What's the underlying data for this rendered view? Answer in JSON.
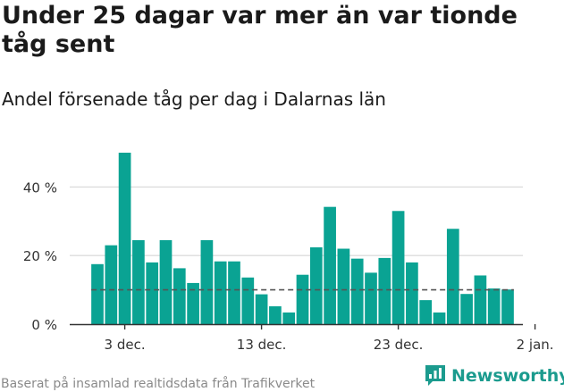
{
  "title": "Under 25 dagar var mer än var tionde tåg sent",
  "subtitle": "Andel försenade tåg per dag i Dalarnas län",
  "source": "Baserat på insamlad realtidsdata från Trafikverket",
  "brand": {
    "name": "Newsworthy",
    "logo_icon": "newsworthy-chart-logo-icon"
  },
  "colors": {
    "bar": "#0aa393",
    "reference_line": "#555555",
    "grid": "#dddddd",
    "axis": "#333333",
    "brand": "#1b9b8e"
  },
  "chart_data": {
    "type": "bar",
    "title": "Under 25 dagar var mer än var tionde tåg sent",
    "subtitle": "Andel försenade tåg per dag i Dalarnas län",
    "x": [
      "2023-12-01",
      "2023-12-02",
      "2023-12-03",
      "2023-12-04",
      "2023-12-05",
      "2023-12-06",
      "2023-12-07",
      "2023-12-08",
      "2023-12-09",
      "2023-12-10",
      "2023-12-11",
      "2023-12-12",
      "2023-12-13",
      "2023-12-14",
      "2023-12-15",
      "2023-12-16",
      "2023-12-17",
      "2023-12-18",
      "2023-12-19",
      "2023-12-20",
      "2023-12-21",
      "2023-12-22",
      "2023-12-23",
      "2023-12-24",
      "2023-12-25",
      "2023-12-26",
      "2023-12-27",
      "2023-12-28",
      "2023-12-29",
      "2023-12-30",
      "2023-12-31"
    ],
    "values": [
      17.5,
      23,
      50,
      24.5,
      18,
      24.5,
      16.3,
      12,
      24.5,
      18.3,
      18.3,
      13.6,
      8.7,
      5.2,
      3.4,
      14.4,
      22.4,
      34.2,
      22,
      19.1,
      15,
      19.3,
      33,
      18,
      7,
      3.4,
      27.8,
      8.8,
      14.2,
      10.4,
      10.1
    ],
    "unit": "%",
    "reference_line": {
      "value": 10,
      "style": "dashed"
    },
    "ylim": [
      0,
      50
    ],
    "yticks": [
      0,
      20,
      40
    ],
    "ytick_labels": [
      "0 %",
      "20 %",
      "40 %"
    ],
    "xticks": [
      "2023-12-03",
      "2023-12-13",
      "2023-12-23",
      "2024-01-02"
    ],
    "xtick_labels": [
      "3 dec.",
      "13 dec.",
      "23 dec.",
      "2 jan."
    ],
    "grid": true
  }
}
